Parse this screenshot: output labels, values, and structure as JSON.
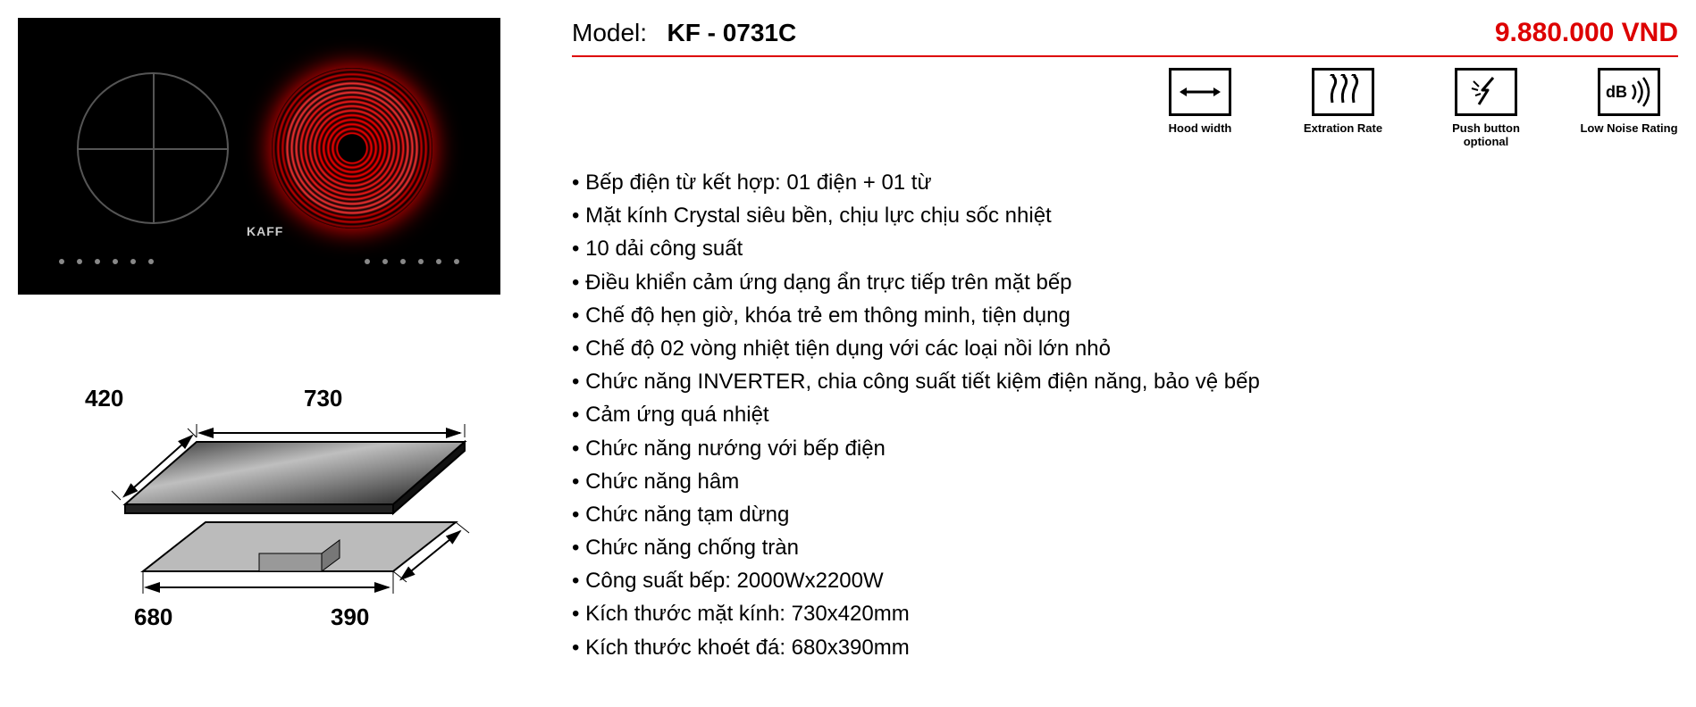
{
  "model_label": "Model:",
  "model_value": "KF - 0731C",
  "price": "9.880.000 VND",
  "price_color": "#dd0000",
  "underline_color": "#dd0000",
  "brand_on_cooktop": "KAFF",
  "icons": [
    {
      "name": "hood-width-icon",
      "caption": "Hood width"
    },
    {
      "name": "extraction-rate-icon",
      "caption": "Extration Rate"
    },
    {
      "name": "push-button-icon",
      "caption": "Push button optional"
    },
    {
      "name": "low-noise-icon",
      "caption": "Low Noise Rating"
    }
  ],
  "features": [
    "Bếp điện từ kết hợp: 01 điện + 01 từ",
    "Mặt kính Crystal siêu bền, chịu lực chịu sốc nhiệt",
    "10 dải công suất",
    "Điều khiển cảm ứng dạng ẩn trực tiếp trên mặt bếp",
    "Chế độ hẹn giờ, khóa trẻ em thông minh, tiện dụng",
    "Chế độ 02 vòng nhiệt tiện dụng với các loại nồi lớn nhỏ",
    "Chức năng INVERTER, chia công suất tiết kiệm điện năng, bảo vệ bếp",
    "Cảm ứng quá nhiệt",
    "Chức năng nướng với bếp điện",
    "Chức năng hâm",
    "Chức năng tạm dừng",
    "Chức năng chống tràn",
    "Công suất bếp: 2000Wx2200W",
    "Kích thước mặt kính: 730x420mm",
    "Kích thước khoét đá: 680x390mm"
  ],
  "dimensions": {
    "top_width": "730",
    "top_depth": "420",
    "cutout_width": "680",
    "cutout_depth": "390"
  },
  "colors": {
    "text": "#000000",
    "background": "#ffffff",
    "cooktop_bg": "#000000",
    "heating_element": "#ff0000",
    "burner_outline": "#555555"
  }
}
